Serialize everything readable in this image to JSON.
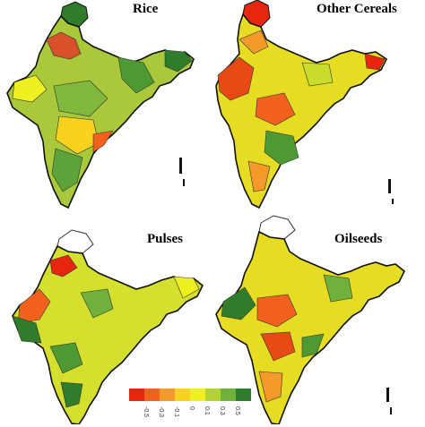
{
  "panels": [
    {
      "title": "Rice"
    },
    {
      "title": "Other Cereals"
    },
    {
      "title": "Pulses"
    },
    {
      "title": "Oilseeds"
    }
  ],
  "legend": {
    "colors": [
      "#e8260f",
      "#f2621d",
      "#f59a2a",
      "#f7d21f",
      "#eef020",
      "#b3d335",
      "#6fb13a",
      "#2f7d2a"
    ],
    "tick_labels": [
      "-0.5",
      "-0.3",
      "-0.1",
      "0",
      "0.1",
      "0.3",
      "0.5"
    ]
  }
}
